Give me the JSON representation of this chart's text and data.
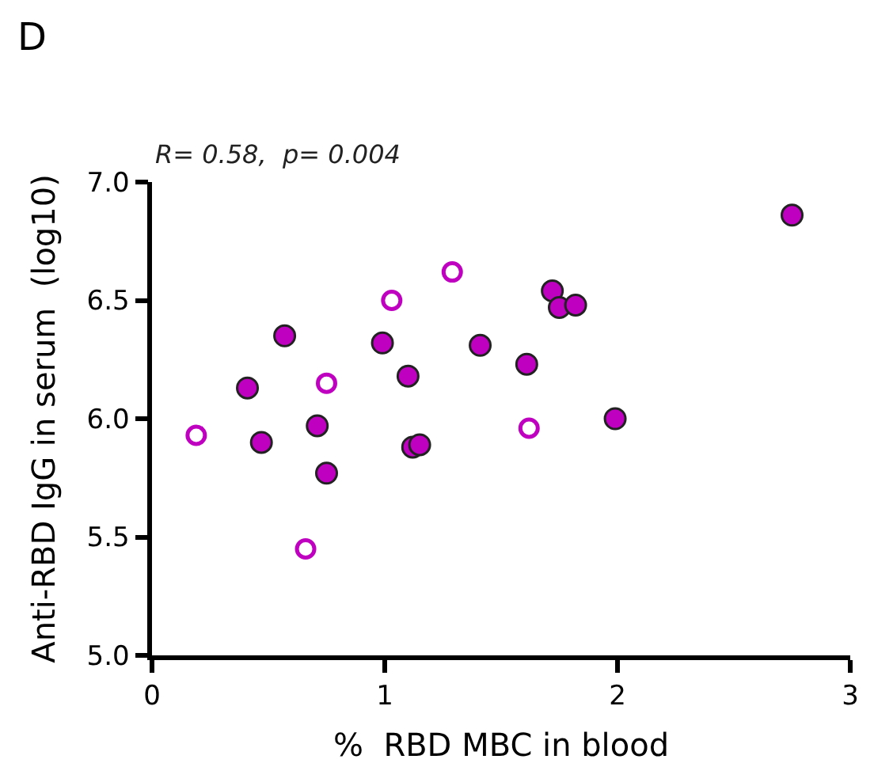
{
  "chart_data": {
    "type": "scatter",
    "title": "D",
    "xlabel": "%  RBD MBC in blood",
    "ylabel": "Anti-RBD IgG in serum  (log10)",
    "annotations": [
      "R= 0.58,  p= 0.004"
    ],
    "series": [
      {
        "color": "#c000c0",
        "marker": "circle",
        "x": [
          0.41,
          0.47,
          0.57,
          0.71,
          0.75,
          0.99,
          1.1,
          1.12,
          1.15,
          1.41,
          1.61,
          1.72,
          1.75,
          1.82,
          1.99,
          2.75
        ],
        "values": [
          6.13,
          5.9,
          6.35,
          5.97,
          5.77,
          6.32,
          6.18,
          5.88,
          5.89,
          6.31,
          6.23,
          6.54,
          6.47,
          6.48,
          6.0,
          6.86
        ]
      },
      {
        "color": "#c000c0",
        "marker": "circle",
        "x": [
          0.19,
          0.66,
          0.75,
          1.03,
          1.29,
          1.62
        ],
        "values": [
          5.93,
          5.45,
          6.15,
          6.5,
          6.62,
          5.96
        ]
      }
    ],
    "xlim": [
      0,
      3
    ],
    "xticks": [
      0,
      1,
      2,
      3
    ],
    "ylim": [
      5.0,
      7.0
    ],
    "yticks": [
      {
        "value": 5,
        "label": "5.0"
      },
      {
        "value": 5.5,
        "label": "5.5"
      },
      {
        "value": 6,
        "label": "6.0"
      },
      {
        "value": 6.5,
        "label": "6.5"
      },
      {
        "value": 7,
        "label": "7.0"
      }
    ]
  }
}
